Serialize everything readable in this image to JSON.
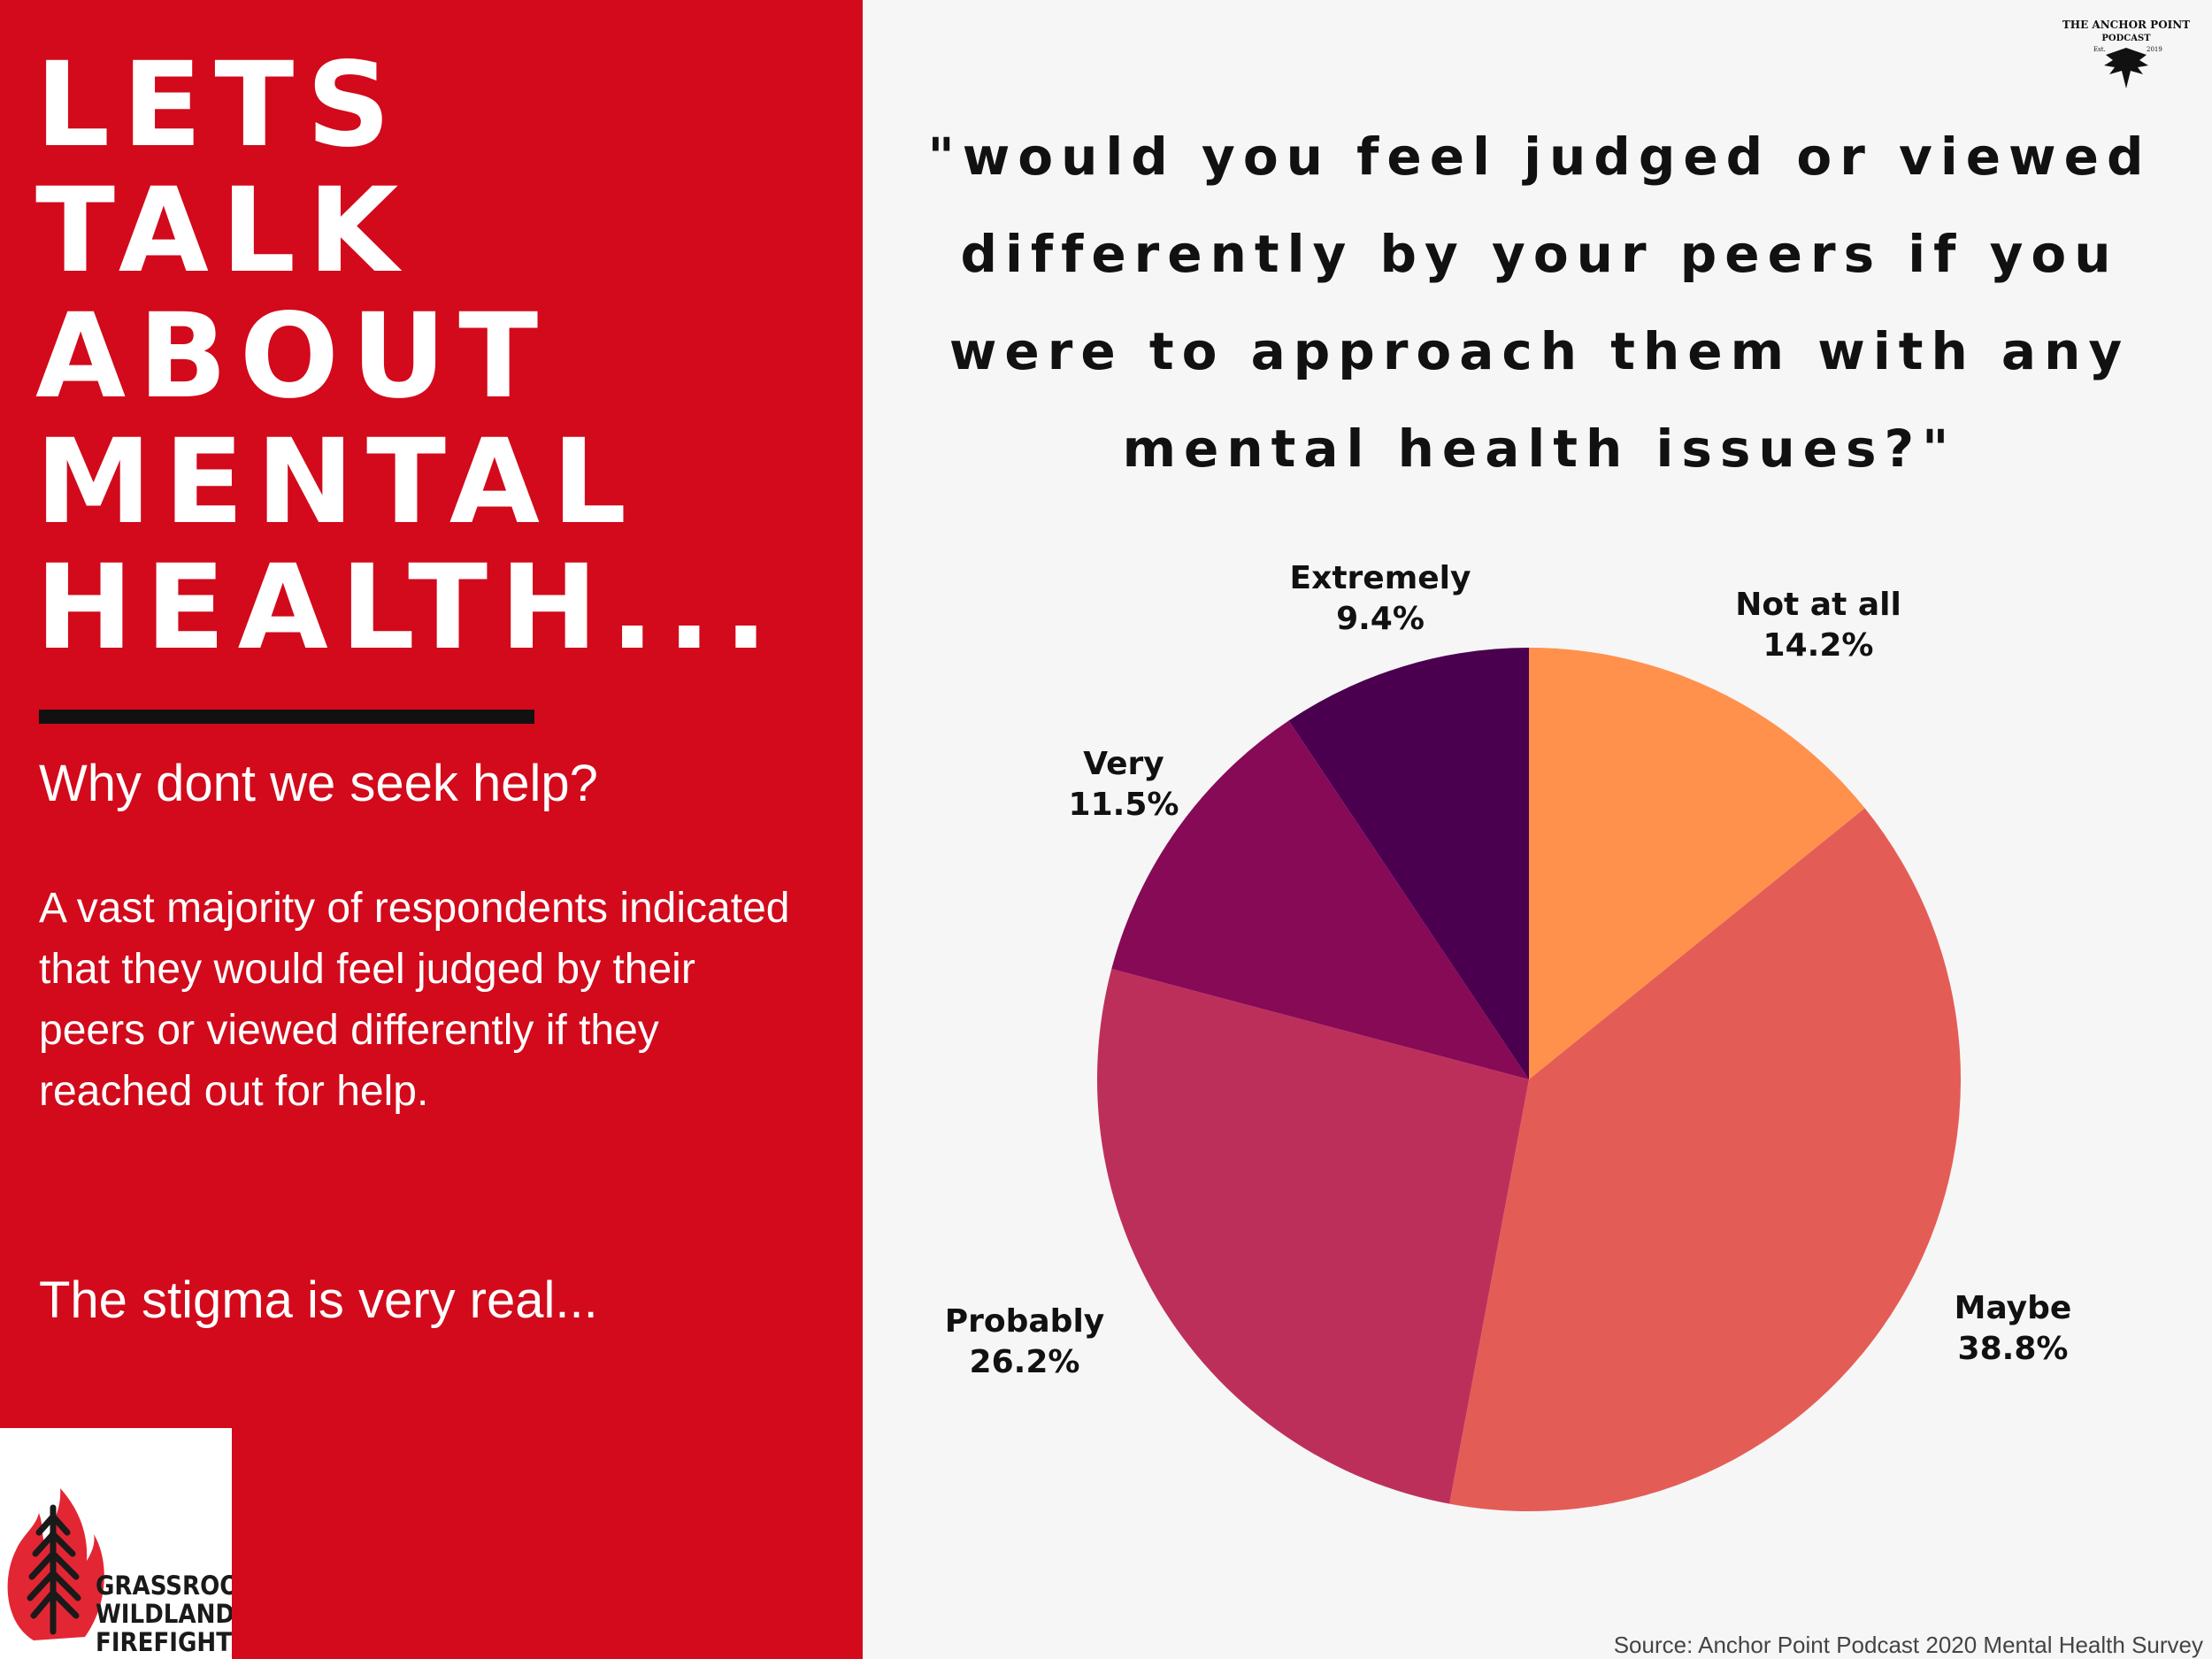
{
  "left_panel": {
    "headline_lines": [
      "LETS",
      "TALK",
      "ABOUT",
      "MENTAL",
      "HEALTH..."
    ],
    "subheading": "Why dont we seek help?",
    "paragraph": "A vast majority of respondents indicated that they would feel judged by their peers or viewed differently if they reached out for help.",
    "closing": "The stigma is very real...",
    "logo_text": [
      "GRASSROOTS",
      "WILDLAND",
      "FIREFIGHTERS"
    ],
    "background_color": "#d20a1b"
  },
  "question": "\"would you feel judged or viewed differently by your peers if you were to approach them with any mental health issues?\"",
  "top_logo": {
    "text": [
      "THE ANCHOR POINT",
      "PODCAST",
      "Est.",
      "2019"
    ],
    "icon": "eagle-icon"
  },
  "source": "Source: Anchor Point Podcast 2020 Mental Health Survey",
  "chart_data": {
    "type": "pie",
    "categories": [
      "Not at all",
      "Maybe",
      "Probably",
      "Very",
      "Extremely"
    ],
    "values": [
      14.2,
      38.8,
      26.2,
      11.5,
      9.4
    ],
    "value_labels": [
      "14.2%",
      "38.8%",
      "26.2%",
      "11.5%",
      "9.4%"
    ],
    "colors": [
      "#ff914d",
      "#e35d56",
      "#bd2f5b",
      "#870a57",
      "#4b004f"
    ],
    "start": "12 o'clock, clockwise",
    "labels_outside": true
  }
}
